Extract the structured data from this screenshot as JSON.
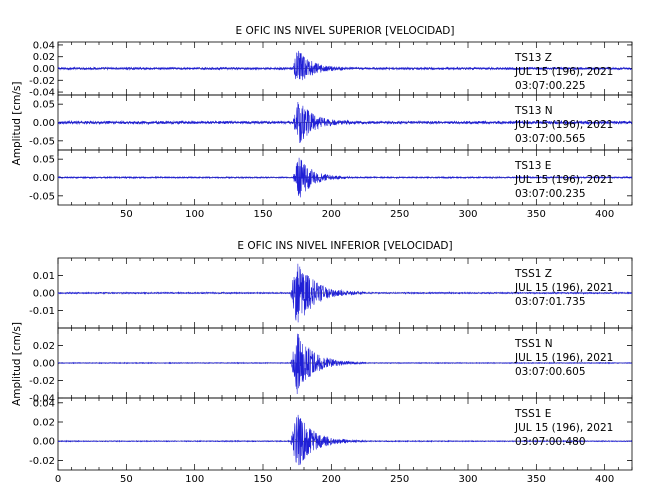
{
  "chart_data": [
    {
      "type": "line",
      "title": "E OFIC INS NIVEL SUPERIOR [VELOCIDAD]",
      "ylabel": "Amplitud [cm/s]",
      "xlabel": "",
      "xlim": [
        0,
        420
      ],
      "x_ticks": [
        "50",
        "100",
        "150",
        "200",
        "250",
        "300",
        "350",
        "400"
      ],
      "grid": false,
      "panels": [
        {
          "station": "TS13",
          "component": "Z",
          "date": "JUL 15 (196), 2021",
          "time": "03:07:00.225",
          "ylim": [
            -0.045,
            0.045
          ],
          "y_ticks": [
            "0.04",
            "0.02",
            "0.00",
            "-0.02",
            "-0.04"
          ],
          "background_amplitude": 0.002,
          "peak_amplitude": 0.035,
          "event_onset": 172,
          "event_peak": 175,
          "coda_end": 215
        },
        {
          "station": "TS13",
          "component": "N",
          "date": "JUL 15 (196), 2021",
          "time": "03:07:00.565",
          "ylim": [
            -0.075,
            0.075
          ],
          "y_ticks": [
            "0.05",
            "0.00",
            "-0.05"
          ],
          "background_amplitude": 0.004,
          "peak_amplitude": 0.07,
          "event_onset": 172,
          "event_peak": 176,
          "coda_end": 215
        },
        {
          "station": "TS13",
          "component": "E",
          "date": "JUL 15 (196), 2021",
          "time": "03:07:00.235",
          "ylim": [
            -0.075,
            0.075
          ],
          "y_ticks": [
            "0.05",
            "0.00",
            "-0.05"
          ],
          "background_amplitude": 0.002,
          "peak_amplitude": 0.065,
          "event_onset": 172,
          "event_peak": 176,
          "coda_end": 215
        }
      ]
    },
    {
      "type": "line",
      "title": "E OFIC INS NIVEL INFERIOR [VELOCIDAD]",
      "ylabel": "Amplitud [cm/s]",
      "xlabel": "",
      "xlim": [
        0,
        420
      ],
      "x_ticks": [
        "0",
        "50",
        "100",
        "150",
        "200",
        "250",
        "300",
        "350",
        "400"
      ],
      "grid": false,
      "panels": [
        {
          "station": "TSS1",
          "component": "Z",
          "date": "JUL 15 (196), 2021",
          "time": "03:07:01.735",
          "ylim": [
            -0.02,
            0.02
          ],
          "y_ticks": [
            "0.01",
            "0.00",
            "-0.01"
          ],
          "background_amplitude": 0.0004,
          "peak_amplitude": 0.02,
          "event_onset": 170,
          "event_peak": 175,
          "coda_end": 225
        },
        {
          "station": "TSS1",
          "component": "N",
          "date": "JUL 15 (196), 2021",
          "time": "03:07:00.605",
          "ylim": [
            -0.04,
            0.04
          ],
          "y_ticks": [
            "0.02",
            "0.00",
            "-0.02",
            "-0.04"
          ],
          "background_amplitude": 0.0005,
          "peak_amplitude": 0.036,
          "event_onset": 170,
          "event_peak": 175,
          "coda_end": 225
        },
        {
          "station": "TSS1",
          "component": "E",
          "date": "JUL 15 (196), 2021",
          "time": "03:07:00.480",
          "ylim": [
            -0.03,
            0.045
          ],
          "y_ticks": [
            "0.04",
            "0.02",
            "0.00",
            "-0.02"
          ],
          "background_amplitude": 0.0005,
          "peak_amplitude": 0.03,
          "event_onset": 170,
          "event_peak": 175,
          "coda_end": 225
        }
      ]
    }
  ],
  "colors": {
    "trace": "#1f1fd6",
    "axis": "#000000",
    "zero_line": "#000000"
  }
}
